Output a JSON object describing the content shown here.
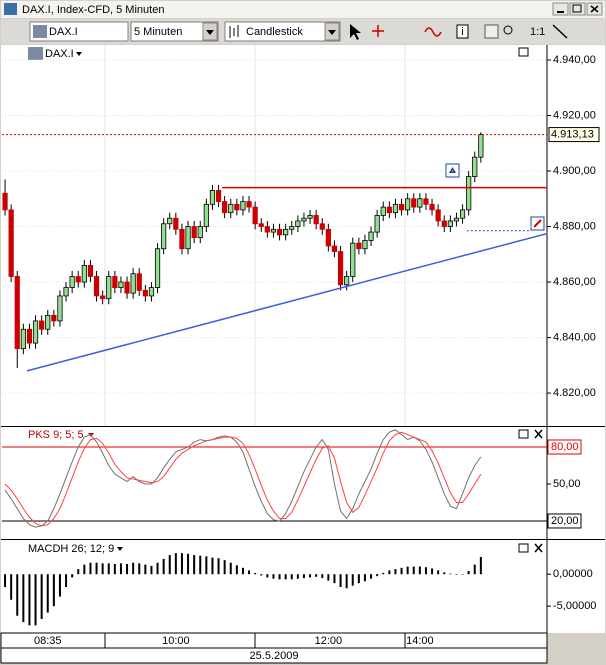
{
  "window": {
    "title": "DAX.I, Index-CFD, 5 Minuten",
    "symbol": "DAX.I",
    "interval": "5 Minuten",
    "chart_style": "Candlestick",
    "zoom": "1:1"
  },
  "chart_data": [
    {
      "type": "candlestick",
      "title": "DAX.I",
      "xlabel": "25.5.2009",
      "categories": [
        null,
        null,
        null,
        null,
        null,
        null,
        null,
        "08:35",
        null,
        null,
        null,
        null,
        null,
        null,
        null,
        null,
        null,
        null,
        null,
        null,
        null,
        null,
        null,
        null,
        null,
        null,
        null,
        null,
        "10:00",
        null,
        null,
        null,
        null,
        null,
        null,
        null,
        null,
        null,
        null,
        null,
        null,
        null,
        null,
        null,
        null,
        null,
        null,
        null,
        null,
        null,
        null,
        null,
        null,
        "12:00",
        null,
        null,
        null,
        null,
        null,
        null,
        null,
        null,
        null,
        null,
        null,
        null,
        null,
        null,
        "14:00",
        null,
        null,
        null,
        null,
        null,
        null,
        null,
        null,
        null,
        null
      ],
      "open": [
        4892,
        4886,
        4862,
        4836,
        4843,
        4838,
        4846,
        4843,
        4848,
        4846,
        4855,
        4858,
        4862,
        4860,
        4866,
        4862,
        4855,
        4854,
        4862,
        4858,
        4860,
        4856,
        4863,
        4857,
        4855,
        4858,
        4872,
        4881,
        4883,
        4879,
        4872,
        4880,
        4876,
        4880,
        4888,
        4893,
        4889,
        4885,
        4888,
        4886,
        4889,
        4887,
        4881,
        4880,
        4878,
        4879,
        4877,
        4879,
        4880,
        4882,
        4883,
        4884,
        4881,
        4879,
        4873,
        4871,
        4859,
        4862,
        4874,
        4872,
        4875,
        4878,
        4884,
        4887,
        4885,
        4888,
        4886,
        4890,
        4887,
        4890,
        4888,
        4886,
        4882,
        4880,
        4882,
        4883,
        4886,
        4898,
        4905
      ],
      "high": [
        4897,
        4888,
        4864,
        4845,
        4845,
        4848,
        4848,
        4850,
        4850,
        4857,
        4860,
        4864,
        4864,
        4868,
        4868,
        4864,
        4857,
        4864,
        4864,
        4862,
        4862,
        4865,
        4865,
        4859,
        4860,
        4874,
        4883,
        4885,
        4885,
        4881,
        4882,
        4882,
        4882,
        4890,
        4895,
        4895,
        4891,
        4890,
        4890,
        4891,
        4891,
        4889,
        4883,
        4882,
        4881,
        4881,
        4881,
        4882,
        4884,
        4885,
        4886,
        4886,
        4883,
        4881,
        4875,
        4873,
        4864,
        4876,
        4876,
        4877,
        4880,
        4886,
        4889,
        4889,
        4890,
        4890,
        4892,
        4892,
        4892,
        4892,
        4890,
        4888,
        4884,
        4884,
        4885,
        4888,
        4900,
        4907,
        4914
      ],
      "low": [
        4884,
        4860,
        4829,
        4834,
        4836,
        4836,
        4841,
        4841,
        4844,
        4844,
        4853,
        4856,
        4858,
        4858,
        4860,
        4853,
        4852,
        4852,
        4856,
        4856,
        4854,
        4854,
        4855,
        4853,
        4853,
        4856,
        4870,
        4879,
        4877,
        4870,
        4870,
        4874,
        4874,
        4878,
        4886,
        4887,
        4883,
        4883,
        4884,
        4884,
        4885,
        4879,
        4878,
        4876,
        4876,
        4875,
        4875,
        4877,
        4878,
        4880,
        4881,
        4879,
        4877,
        4871,
        4869,
        4857,
        4857,
        4860,
        4870,
        4870,
        4873,
        4876,
        4882,
        4883,
        4883,
        4884,
        4884,
        4885,
        4885,
        4886,
        4884,
        4880,
        4878,
        4878,
        4880,
        4881,
        4884,
        4896,
        4903
      ],
      "close": [
        4886,
        4862,
        4836,
        4843,
        4838,
        4846,
        4843,
        4848,
        4846,
        4855,
        4858,
        4862,
        4860,
        4866,
        4862,
        4855,
        4854,
        4862,
        4858,
        4860,
        4856,
        4863,
        4857,
        4855,
        4858,
        4872,
        4881,
        4883,
        4879,
        4872,
        4880,
        4876,
        4880,
        4888,
        4893,
        4889,
        4885,
        4888,
        4886,
        4889,
        4887,
        4881,
        4880,
        4878,
        4879,
        4877,
        4879,
        4880,
        4882,
        4883,
        4884,
        4881,
        4879,
        4873,
        4871,
        4859,
        4862,
        4874,
        4872,
        4875,
        4878,
        4884,
        4887,
        4885,
        4888,
        4886,
        4890,
        4887,
        4890,
        4888,
        4886,
        4882,
        4880,
        4882,
        4883,
        4886,
        4898,
        4905,
        4913.13
      ],
      "up_color": "#90e090",
      "down_color": "#cc0000",
      "ylim": [
        4808.5,
        4945.4
      ],
      "yticks": [
        {
          "value": 4940,
          "label": "4.940,00"
        },
        {
          "value": 4920,
          "label": "4.920,00"
        },
        {
          "value": 4900,
          "label": "4.900,00"
        },
        {
          "value": 4880,
          "label": "4.880,00"
        },
        {
          "value": 4860,
          "label": "4.860,00"
        },
        {
          "value": 4840,
          "label": "4.840,00"
        },
        {
          "value": 4820,
          "label": "4.820,00"
        }
      ],
      "grid": true,
      "last_price": {
        "value": 4913.13,
        "label": "4.913,13"
      },
      "lines": [
        {
          "x": [
            35.6,
            88.9
          ],
          "y": [
            4894,
            4894
          ],
          "color": "#e00000"
        },
        {
          "x": [
            3.6,
            88.9
          ],
          "y": [
            4828,
            4877.5
          ],
          "color": "#3a5fe0"
        },
        {
          "x": [
            75.7,
            86
          ],
          "y": [
            4878.5,
            4878.5
          ],
          "color": "#3a3ad0",
          "dash": true
        }
      ]
    },
    {
      "type": "line",
      "title": "PKS 9; 5; 5",
      "ylim": [
        6.2,
        95.4
      ],
      "yticks": [
        {
          "value": 50,
          "label": "50,00"
        }
      ],
      "levels": [
        {
          "value": 80,
          "label": "80,00",
          "color": "#e00000"
        },
        {
          "value": 20,
          "label": "20,00",
          "color": "#000000"
        }
      ],
      "series": [
        {
          "color": "#707070",
          "values": [
            45,
            38,
            30,
            22,
            17,
            15,
            16,
            20,
            30,
            42,
            55,
            68,
            80,
            88,
            90,
            84,
            75,
            65,
            58,
            55,
            52,
            56,
            52,
            50,
            50,
            55,
            63,
            70,
            76,
            78,
            80,
            84,
            86,
            85,
            86,
            88,
            89,
            88,
            84,
            76,
            62,
            48,
            36,
            26,
            21,
            20,
            26,
            36,
            48,
            60,
            70,
            80,
            86,
            78,
            50,
            28,
            22,
            30,
            42,
            52,
            62,
            75,
            86,
            92,
            94,
            90,
            86,
            88,
            85,
            78,
            68,
            55,
            42,
            32,
            30,
            42,
            55,
            65,
            72
          ]
        },
        {
          "color": "#ff4040",
          "values": [
            50,
            45,
            38,
            30,
            23,
            18,
            16,
            17,
            22,
            30,
            42,
            55,
            68,
            79,
            86,
            87,
            83,
            75,
            66,
            60,
            55,
            54,
            53,
            52,
            51,
            52,
            56,
            63,
            70,
            75,
            78,
            81,
            83,
            85,
            86,
            87,
            88,
            88,
            87,
            83,
            74,
            62,
            49,
            37,
            28,
            22,
            22,
            27,
            37,
            48,
            59,
            70,
            79,
            81,
            71,
            52,
            35,
            27,
            31,
            41,
            52,
            63,
            75,
            85,
            90,
            92,
            90,
            88,
            86,
            84,
            77,
            67,
            55,
            43,
            35,
            35,
            42,
            50,
            58
          ]
        }
      ]
    },
    {
      "type": "bar",
      "title": "MACDH 26; 12; 9",
      "ylim": [
        -9.2,
        5.2
      ],
      "color": "#000000",
      "yticks": [
        {
          "value": 0,
          "label": "0,00000"
        },
        {
          "value": -5,
          "label": "-5,00000"
        }
      ],
      "values": [
        -2,
        -4,
        -6.5,
        -7.5,
        -8,
        -8,
        -7,
        -6,
        -5,
        -3.5,
        -2,
        -0.5,
        0.8,
        1.5,
        1.8,
        1.8,
        1.7,
        1.7,
        1.6,
        1.7,
        1.6,
        1.8,
        1.7,
        1.5,
        1.3,
        1.8,
        2.4,
        3,
        3.3,
        3.3,
        3.2,
        3,
        2.9,
        2.8,
        2.6,
        2.5,
        2.2,
        1.8,
        1.4,
        1,
        0.6,
        0.2,
        -0.2,
        -0.5,
        -0.7,
        -0.8,
        -0.8,
        -0.8,
        -0.7,
        -0.6,
        -0.5,
        -0.4,
        -0.6,
        -1,
        -1.4,
        -2,
        -2.2,
        -1.8,
        -1.4,
        -1.1,
        -0.7,
        -0.3,
        0.2,
        0.6,
        0.8,
        1,
        1.2,
        1.2,
        1.2,
        1.1,
        0.9,
        0.6,
        0.3,
        0.1,
        -0.1,
        0,
        0.5,
        1.5,
        2.7
      ]
    }
  ]
}
